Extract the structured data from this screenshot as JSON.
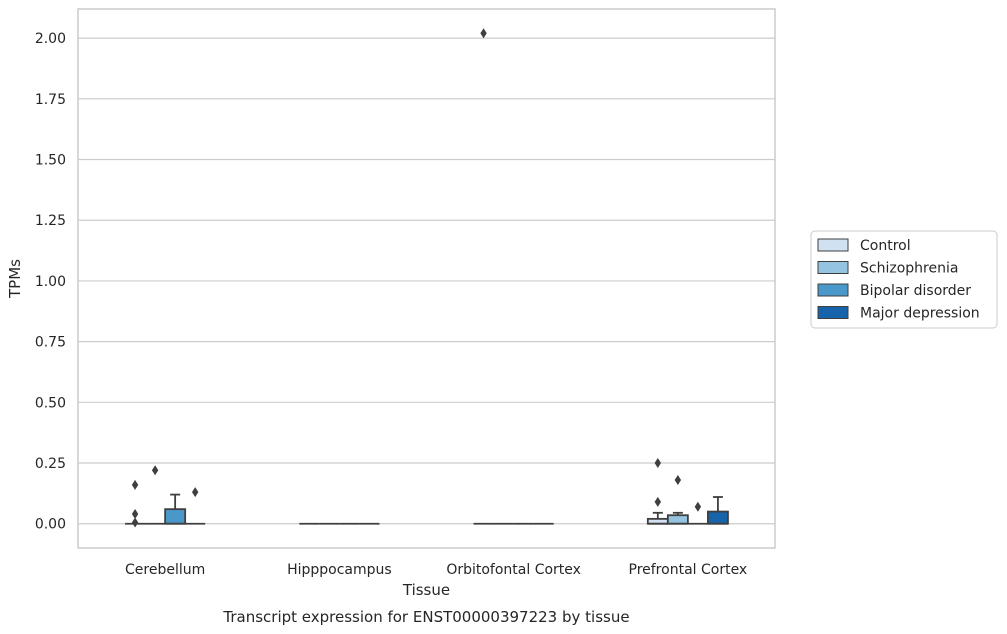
{
  "caption": "Transcript expression for ENST00000397223 by tissue",
  "colors": {
    "Control": "#d0e1f2",
    "Schizophrenia": "#94c4df",
    "Bipolar disorder": "#4a98c9",
    "Major depression": "#1764ab",
    "grid": "#cccccc",
    "edge": "#3f3f3f"
  },
  "chart_data": {
    "type": "box",
    "xlabel": "Tissue",
    "ylabel": "TPMs",
    "ylim": [
      -0.1,
      2.12
    ],
    "yticks": [
      "0.00",
      "0.25",
      "0.50",
      "0.75",
      "1.00",
      "1.25",
      "1.50",
      "1.75",
      "2.00"
    ],
    "categories": [
      "Cerebellum",
      "Hipppocampus",
      "Orbitofontal Cortex",
      "Prefrontal Cortex"
    ],
    "legend": {
      "placement": "center-right",
      "entries": [
        "Control",
        "Schizophrenia",
        "Bipolar disorder",
        "Major depression"
      ]
    },
    "grid": "horizontal",
    "series": [
      {
        "name": "Control",
        "boxes": [
          {
            "q1": 0,
            "median": 0,
            "q3": 0,
            "whisker_low": 0,
            "whisker_high": 0,
            "outliers": [
              0.16,
              0.04,
              0.005
            ]
          },
          {
            "q1": 0,
            "median": 0,
            "q3": 0,
            "whisker_low": 0,
            "whisker_high": 0,
            "outliers": []
          },
          {
            "q1": 0,
            "median": 0,
            "q3": 0,
            "whisker_low": 0,
            "whisker_high": 0,
            "outliers": [
              2.02
            ]
          },
          {
            "q1": 0,
            "median": 0,
            "q3": 0.02,
            "whisker_low": 0,
            "whisker_high": 0.045,
            "outliers": [
              0.25,
              0.09
            ]
          }
        ]
      },
      {
        "name": "Schizophrenia",
        "boxes": [
          {
            "q1": 0,
            "median": 0,
            "q3": 0,
            "whisker_low": 0,
            "whisker_high": 0,
            "outliers": [
              0.22
            ]
          },
          {
            "q1": 0,
            "median": 0,
            "q3": 0,
            "whisker_low": 0,
            "whisker_high": 0,
            "outliers": []
          },
          {
            "q1": 0,
            "median": 0,
            "q3": 0,
            "whisker_low": 0,
            "whisker_high": 0,
            "outliers": []
          },
          {
            "q1": 0,
            "median": 0,
            "q3": 0.035,
            "whisker_low": 0,
            "whisker_high": 0.045,
            "outliers": [
              0.18
            ]
          }
        ]
      },
      {
        "name": "Bipolar disorder",
        "boxes": [
          {
            "q1": 0,
            "median": 0,
            "q3": 0.06,
            "whisker_low": 0,
            "whisker_high": 0.12,
            "outliers": []
          },
          {
            "q1": 0,
            "median": 0,
            "q3": 0,
            "whisker_low": 0,
            "whisker_high": 0,
            "outliers": []
          },
          {
            "q1": 0,
            "median": 0,
            "q3": 0,
            "whisker_low": 0,
            "whisker_high": 0,
            "outliers": []
          },
          {
            "q1": 0,
            "median": 0,
            "q3": 0,
            "whisker_low": 0,
            "whisker_high": 0,
            "outliers": [
              0.07
            ]
          }
        ]
      },
      {
        "name": "Major depression",
        "boxes": [
          {
            "q1": 0,
            "median": 0,
            "q3": 0,
            "whisker_low": 0,
            "whisker_high": 0,
            "outliers": [
              0.13
            ]
          },
          {
            "q1": 0,
            "median": 0,
            "q3": 0,
            "whisker_low": 0,
            "whisker_high": 0,
            "outliers": []
          },
          {
            "q1": 0,
            "median": 0,
            "q3": 0,
            "whisker_low": 0,
            "whisker_high": 0,
            "outliers": []
          },
          {
            "q1": 0,
            "median": 0,
            "q3": 0.05,
            "whisker_low": 0,
            "whisker_high": 0.11,
            "outliers": []
          }
        ]
      }
    ]
  }
}
